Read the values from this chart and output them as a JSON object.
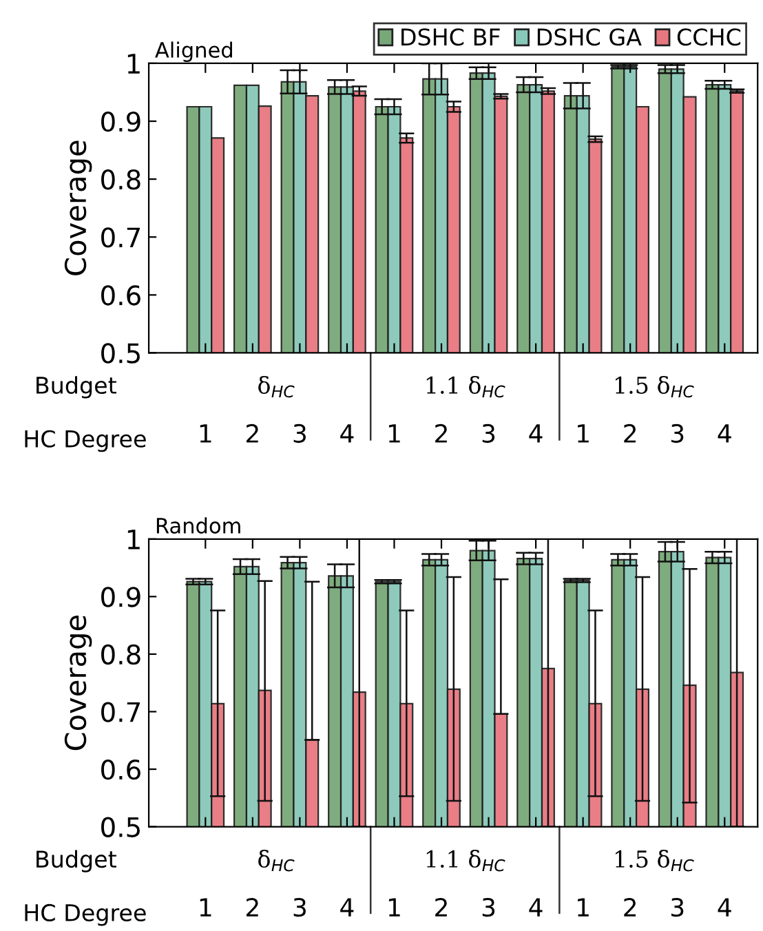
{
  "chart_data": [
    {
      "type": "bar",
      "title": "Aligned",
      "ylabel": "Coverage",
      "categories": [
        "1",
        "2",
        "3",
        "4",
        "1",
        "2",
        "3",
        "4",
        "1",
        "2",
        "3",
        "4"
      ],
      "series": [
        {
          "name": "DSHC BF",
          "color": "#78a878",
          "values": [
            0.925,
            0.962,
            0.968,
            0.959,
            0.925,
            0.973,
            0.983,
            0.963,
            0.944,
            0.994,
            0.99,
            0.963
          ],
          "errors": [
            null,
            null,
            0.02,
            0.012,
            0.013,
            0.027,
            0.01,
            0.013,
            0.022,
            0.003,
            0.007,
            0.007
          ]
        },
        {
          "name": "DSHC GA",
          "color": "#88c8b8",
          "values": [
            0.925,
            0.962,
            0.968,
            0.959,
            0.925,
            0.973,
            0.983,
            0.963,
            0.944,
            0.994,
            0.99,
            0.963
          ],
          "errors": [
            null,
            null,
            0.02,
            0.012,
            0.013,
            0.027,
            0.01,
            0.013,
            0.022,
            0.003,
            0.007,
            0.007
          ]
        },
        {
          "name": "CCHC",
          "color": "#e87880",
          "values": [
            0.871,
            0.926,
            0.944,
            0.952,
            0.871,
            0.925,
            0.943,
            0.952,
            0.869,
            0.925,
            0.942,
            0.952
          ],
          "errors": [
            null,
            null,
            null,
            0.008,
            0.008,
            0.009,
            0.004,
            0.005,
            0.005,
            null,
            null,
            0.003
          ]
        }
      ],
      "ylim": [
        0.5,
        1
      ],
      "yticks": [
        0.5,
        0.6,
        0.7,
        0.8,
        0.9,
        1
      ],
      "legend": "top right",
      "annotations": [
        "Budget",
        "HC Degree",
        "δ$_{HC}$",
        "1.1 δ$_{HC}$",
        "1.5 δ$_{HC}$"
      ]
    },
    {
      "type": "bar",
      "title": "Random",
      "ylabel": "Coverage",
      "categories": [
        "1",
        "2",
        "3",
        "4",
        "1",
        "2",
        "3",
        "4",
        "1",
        "2",
        "3",
        "4"
      ],
      "series": [
        {
          "color": "#78a878",
          "values": [
            0.926,
            0.952,
            0.959,
            0.936,
            0.926,
            0.964,
            0.98,
            0.966,
            0.928,
            0.964,
            0.978,
            0.968
          ],
          "errors": [
            0.005,
            0.013,
            0.01,
            0.02,
            0.003,
            0.01,
            0.017,
            0.01,
            0.003,
            0.01,
            0.017,
            0.01
          ]
        },
        {
          "color": "#88c8b8",
          "values": [
            0.926,
            0.952,
            0.959,
            0.936,
            0.926,
            0.964,
            0.98,
            0.966,
            0.928,
            0.964,
            0.978,
            0.968
          ],
          "errors": [
            0.005,
            0.013,
            0.01,
            0.02,
            0.003,
            0.01,
            0.017,
            0.01,
            0.003,
            0.01,
            0.017,
            0.01
          ]
        },
        {
          "color": "#e87880",
          "values": [
            0.714,
            0.737,
            0.651,
            0.734,
            0.714,
            0.739,
            0.696,
            0.775,
            0.714,
            0.739,
            0.746,
            0.768
          ],
          "errors": [
            [
              0.553,
              0.876
            ],
            [
              0.545,
              0.927
            ],
            [
              0.651,
              0.926
            ],
            [
              0.5,
              1.0
            ],
            [
              0.553,
              0.876
            ],
            [
              0.545,
              0.934
            ],
            [
              0.696,
              0.93
            ],
            [
              0.5,
              1.0
            ],
            [
              0.553,
              0.876
            ],
            [
              0.545,
              0.934
            ],
            [
              0.542,
              0.948
            ],
            [
              0.5,
              1.0
            ]
          ]
        }
      ],
      "ylim": [
        0.5,
        1
      ],
      "yticks": [
        0.5,
        0.6,
        0.7,
        0.8,
        0.9,
        1
      ],
      "annotations": [
        "Budget",
        "HC Degree",
        "δ$_{HC}$",
        "1.1 δ$_{HC}$",
        "1.5 δ$_{HC}$"
      ]
    }
  ]
}
